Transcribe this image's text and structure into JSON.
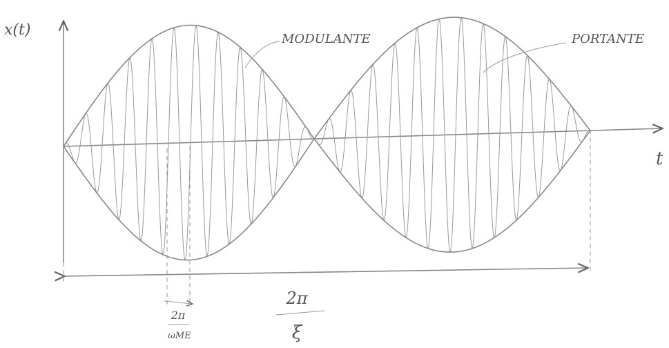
{
  "labels": {
    "y_axis": "x(t)",
    "x_axis": "t",
    "modulating": "MODULANTE",
    "carrier": "PORTANTE",
    "carrier_period": {
      "numerator": "2π",
      "denominator": "ωME"
    },
    "modulation_period": {
      "numerator": "2π",
      "denominator": "ξ"
    }
  }
}
